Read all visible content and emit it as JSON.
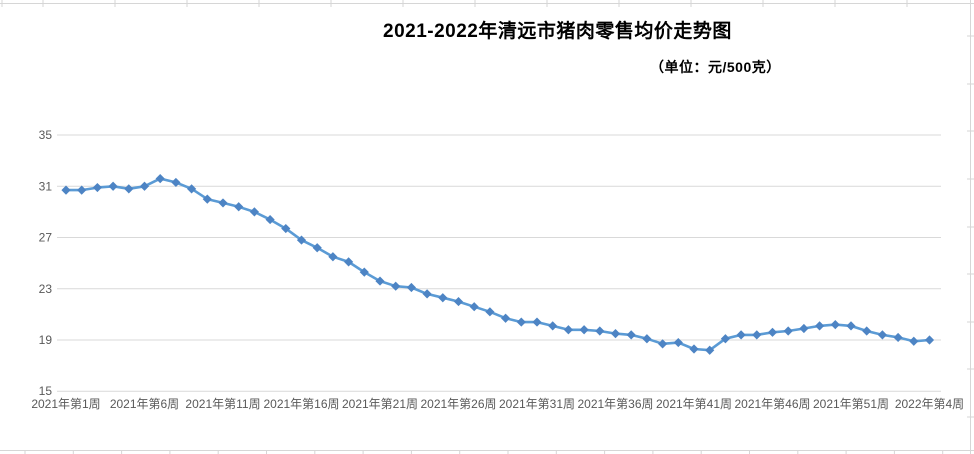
{
  "header": {
    "title": "2021-2022年清远市猪肉零售均价走势图",
    "subtitle": "（单位：元/500克）"
  },
  "chart_data": {
    "type": "line",
    "title": "2021-2022年清远市猪肉零售均价走势图",
    "unit_label": "（单位：元/500克）",
    "xlabel": "",
    "ylabel": "",
    "ylim": [
      15,
      35
    ],
    "yticks": [
      15,
      19,
      23,
      27,
      31,
      35
    ],
    "grid": "horizontal",
    "legend": "none",
    "marker": "diamond",
    "x_tick_interval": 5,
    "n_points": 56,
    "x_tick_labels": [
      "2021年第1周",
      "2021年第6周",
      "2021年第11周",
      "2021年第16周",
      "2021年第21周",
      "2021年第26周",
      "2021年第31周",
      "2021年第36周",
      "2021年第41周",
      "2021年第46周",
      "2021年第51周",
      "2022年第4周"
    ],
    "series": [
      {
        "name": "猪肉零售均价",
        "values": [
          30.7,
          30.7,
          30.9,
          31.0,
          30.8,
          31.0,
          31.6,
          31.3,
          30.8,
          30.0,
          29.7,
          29.4,
          29.0,
          28.4,
          27.7,
          26.8,
          26.2,
          25.5,
          25.1,
          24.3,
          23.6,
          23.2,
          23.1,
          22.6,
          22.3,
          22.0,
          21.6,
          21.2,
          20.7,
          20.4,
          20.4,
          20.1,
          19.8,
          19.8,
          19.7,
          19.5,
          19.4,
          19.1,
          18.7,
          18.8,
          18.3,
          18.2,
          19.1,
          19.4,
          19.4,
          19.6,
          19.7,
          19.9,
          20.1,
          20.2,
          20.1,
          19.7,
          19.4,
          19.2,
          18.9,
          19.0
        ]
      }
    ],
    "colors": {
      "line": "#5B9BD5",
      "marker": "#4D84C4",
      "gridline": "#D9D9D9",
      "tick_text": "#595959",
      "spreadsheet_line": "#D6D6D6",
      "title_text": "#000000"
    }
  }
}
